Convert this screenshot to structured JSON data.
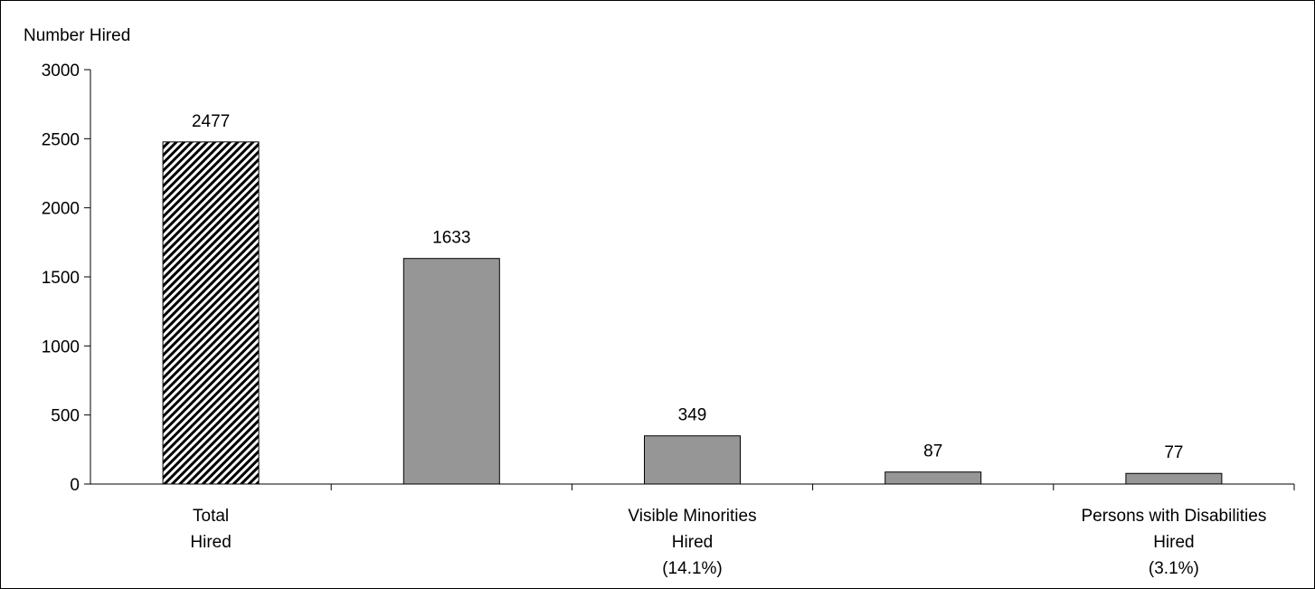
{
  "chart_data": {
    "type": "bar",
    "ylabel": "Number Hired",
    "xlabel": "",
    "ylim": [
      0,
      3000
    ],
    "yticks": [
      0,
      500,
      1000,
      1500,
      2000,
      2500,
      3000
    ],
    "grid": false,
    "categories": [
      {
        "label": [
          "Total",
          "Hired"
        ],
        "value": 2477,
        "fill": "hatch"
      },
      {
        "label": [],
        "value": 1633,
        "fill": "solid"
      },
      {
        "label": [
          "Visible Minorities",
          "Hired",
          "(14.1%)"
        ],
        "value": 349,
        "fill": "solid"
      },
      {
        "label": [],
        "value": 87,
        "fill": "solid"
      },
      {
        "label": [
          "Persons with Disabilities",
          "Hired",
          "(3.1%)"
        ],
        "value": 77,
        "fill": "solid"
      }
    ],
    "colors": {
      "bar": "#969696",
      "outline": "#000000",
      "hatch": "#000000"
    }
  }
}
